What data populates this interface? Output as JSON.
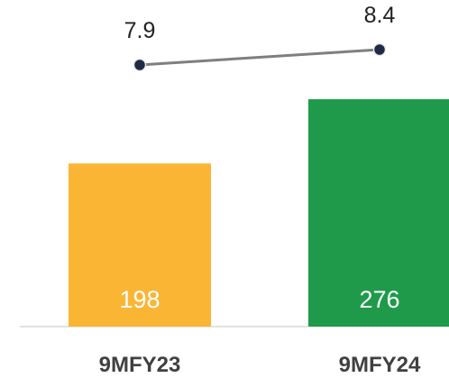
{
  "chart_data": {
    "type": "bar",
    "categories": [
      "9MFY23",
      "9MFY24"
    ],
    "series": [
      {
        "kind": "bar",
        "values": [
          198,
          276
        ],
        "colors": [
          "#FBB535",
          "#1F9A4B"
        ]
      },
      {
        "kind": "line",
        "values": [
          7.9,
          8.4
        ],
        "color": "#7F7F7F",
        "marker_color": "#1F2A44"
      }
    ],
    "title": "",
    "xlabel": "",
    "ylabel": "",
    "grid": false,
    "legend": "none"
  }
}
